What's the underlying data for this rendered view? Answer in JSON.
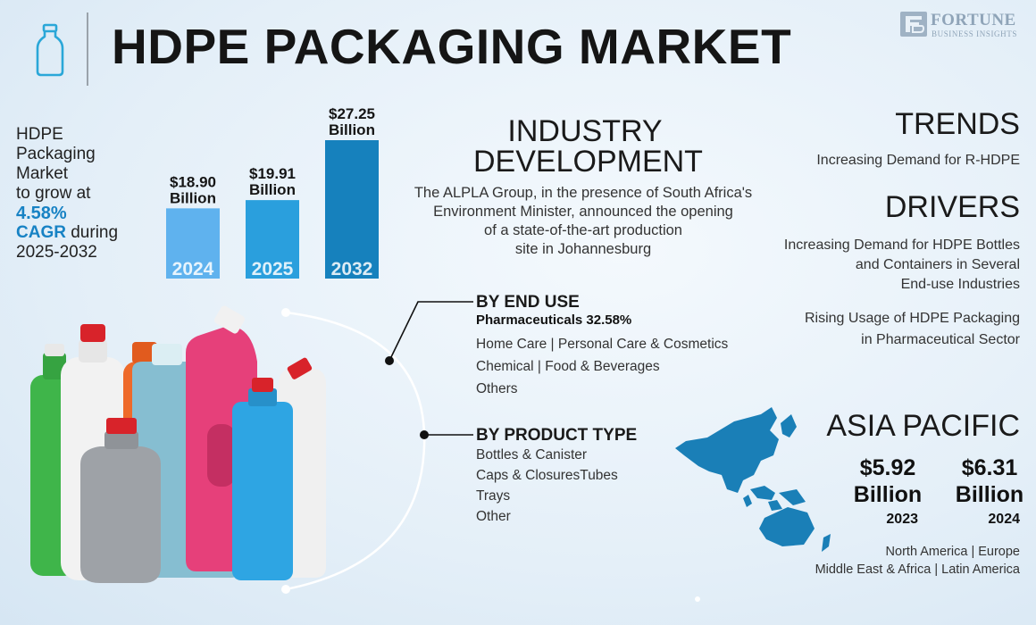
{
  "header": {
    "title": "HDPE PACKAGING MARKET",
    "icon": "milk-bottle-icon",
    "logo": {
      "name": "FORTUNE",
      "subtitle": "BUSINESS INSIGHTS"
    }
  },
  "growth": {
    "line1": "HDPE",
    "line2": "Packaging",
    "line3": "Market",
    "line4": "to grow at",
    "cagr_value": "4.58%",
    "cagr_label": "CAGR",
    "during": " during",
    "period": "2025-2032"
  },
  "chart_data": {
    "type": "bar",
    "categories": [
      "2024",
      "2025",
      "2032"
    ],
    "values": [
      18.9,
      19.91,
      27.25
    ],
    "value_labels": [
      "$18.90",
      "$19.91",
      "$27.25"
    ],
    "unit_label": "Billion",
    "bar_colors": [
      "#5fb2ee",
      "#2a9fdd",
      "#1681bd"
    ],
    "title": "",
    "xlabel": "",
    "ylabel": ""
  },
  "industry": {
    "title_line1": "INDUSTRY",
    "title_line2": "DEVELOPMENT",
    "body_line1": "The ALPLA Group, in the presence of South Africa's",
    "body_line2": "Environment Minister, announced the opening",
    "body_line3": "of a state-of-the-art production",
    "body_line4": "site in Johannesburg"
  },
  "trends": {
    "title": "TRENDS",
    "item": "Increasing Demand for R-HDPE"
  },
  "drivers": {
    "title": "DRIVERS",
    "item1_line1": "Increasing Demand for HDPE Bottles",
    "item1_line2": "and Containers in Several",
    "item1_line3": "End-use Industries",
    "item2_line1": "Rising Usage of HDPE Packaging",
    "item2_line2": "in Pharmaceutical Sector"
  },
  "end_use": {
    "title": "BY END USE",
    "lead": "Pharmaceuticals  32.58%",
    "row1": "Home Care  |  Personal Care & Cosmetics",
    "row2": "Chemical  |  Food & Beverages",
    "row3": "Others"
  },
  "product_type": {
    "title": "BY PRODUCT TYPE",
    "items": [
      "Bottles & Canister",
      "Caps & ClosuresTubes",
      "Trays",
      "Other"
    ]
  },
  "asia_pacific": {
    "title": "ASIA PACIFIC",
    "value_2023": "$5.92",
    "value_2024": "$6.31",
    "unit": "Billion",
    "year_2023": "2023",
    "year_2024": "2024",
    "map_color": "#1a7fb7"
  },
  "regions": {
    "line1": "North America  |  Europe",
    "line2": "Middle East & Africa  |  Latin America"
  },
  "colors": {
    "accent": "#1782c4"
  }
}
